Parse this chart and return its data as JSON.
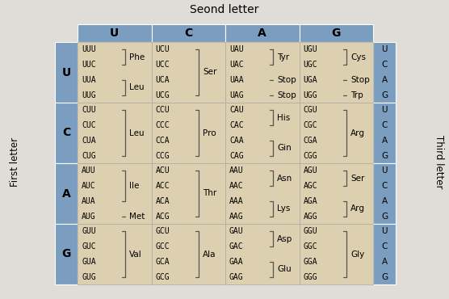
{
  "title": "Seond letter",
  "first_letter_label": "First letter",
  "third_letter_label": "Third letter",
  "second_letters": [
    "U",
    "C",
    "A",
    "G"
  ],
  "first_letters": [
    "U",
    "C",
    "A",
    "G"
  ],
  "third_letters": [
    "U",
    "C",
    "A",
    "G"
  ],
  "fig_bg": "#e0ddd8",
  "header_color": "#7b9ec0",
  "cell_bg": "#ddd0b0",
  "cells": {
    "UU": {
      "codons": [
        "UUU",
        "UUC",
        "UUA",
        "UUG"
      ],
      "aminos": [
        [
          "Phe",
          0,
          1
        ],
        [
          "Leu",
          2,
          3
        ]
      ]
    },
    "UC": {
      "codons": [
        "UCU",
        "UCC",
        "UCA",
        "UCG"
      ],
      "aminos": [
        [
          "Ser",
          0,
          3
        ]
      ]
    },
    "UA": {
      "codons": [
        "UAU",
        "UAC",
        "UAA",
        "UAG"
      ],
      "aminos": [
        [
          "Tyr",
          0,
          1
        ],
        [
          "Stop",
          2,
          2
        ],
        [
          "Stop",
          3,
          3
        ]
      ]
    },
    "UG": {
      "codons": [
        "UGU",
        "UGC",
        "UGA",
        "UGG"
      ],
      "aminos": [
        [
          "Cys",
          0,
          1
        ],
        [
          "Stop",
          2,
          2
        ],
        [
          "Trp",
          3,
          3
        ]
      ]
    },
    "CU": {
      "codons": [
        "CUU",
        "CUC",
        "CUA",
        "CUG"
      ],
      "aminos": [
        [
          "Leu",
          0,
          3
        ]
      ]
    },
    "CC": {
      "codons": [
        "CCU",
        "CCC",
        "CCA",
        "CCG"
      ],
      "aminos": [
        [
          "Pro",
          0,
          3
        ]
      ]
    },
    "CA": {
      "codons": [
        "CAU",
        "CAC",
        "CAA",
        "CAG"
      ],
      "aminos": [
        [
          "His",
          0,
          1
        ],
        [
          "Gin",
          2,
          3
        ]
      ]
    },
    "CG": {
      "codons": [
        "CGU",
        "CGC",
        "CGA",
        "CGG"
      ],
      "aminos": [
        [
          "Arg",
          0,
          3
        ]
      ]
    },
    "AU": {
      "codons": [
        "AUU",
        "AUC",
        "AUA",
        "AUG"
      ],
      "aminos": [
        [
          "Ile",
          0,
          2
        ],
        [
          "Met",
          3,
          3
        ]
      ]
    },
    "AC": {
      "codons": [
        "ACU",
        "ACC",
        "ACA",
        "ACG"
      ],
      "aminos": [
        [
          "Thr",
          0,
          3
        ]
      ]
    },
    "AA": {
      "codons": [
        "AAU",
        "AAC",
        "AAA",
        "AAG"
      ],
      "aminos": [
        [
          "Asn",
          0,
          1
        ],
        [
          "Lys",
          2,
          3
        ]
      ]
    },
    "AG": {
      "codons": [
        "AGU",
        "AGC",
        "AGA",
        "AGG"
      ],
      "aminos": [
        [
          "Ser",
          0,
          1
        ],
        [
          "Arg",
          2,
          3
        ]
      ]
    },
    "GU": {
      "codons": [
        "GUU",
        "GUC",
        "GUA",
        "GUG"
      ],
      "aminos": [
        [
          "Val",
          0,
          3
        ]
      ]
    },
    "GC": {
      "codons": [
        "GCU",
        "GCC",
        "GCA",
        "GCG"
      ],
      "aminos": [
        [
          "Ala",
          0,
          3
        ]
      ]
    },
    "GA": {
      "codons": [
        "GAU",
        "GAC",
        "GAA",
        "GAG"
      ],
      "aminos": [
        [
          "Asp",
          0,
          1
        ],
        [
          "Glu",
          2,
          3
        ]
      ]
    },
    "GG": {
      "codons": [
        "GGU",
        "GGC",
        "GGA",
        "GGG"
      ],
      "aminos": [
        [
          "Gly",
          0,
          3
        ]
      ]
    }
  }
}
